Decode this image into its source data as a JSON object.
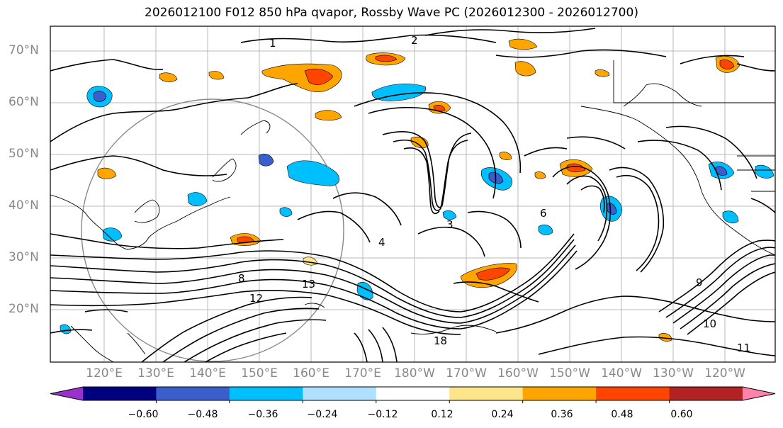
{
  "title": "2026012100 F012 850 hPa qvapor, Rossby Wave PC (2026012300 - 2026012700)",
  "latitude_labels": [
    "70°N",
    "60°N",
    "50°N",
    "40°N",
    "30°N",
    "20°N"
  ],
  "longitude_labels": [
    "120°E",
    "130°E",
    "140°E",
    "150°E",
    "160°E",
    "170°E",
    "180°W",
    "170°W",
    "160°W",
    "150°W",
    "140°W",
    "130°W",
    "120°W"
  ],
  "contour_labels": [
    "1",
    "2",
    "3",
    "4",
    "6",
    "8",
    "9",
    "10",
    "11",
    "12",
    "13",
    "18"
  ],
  "colorbar": {
    "tick_labels": [
      "−0.60",
      "−0.48",
      "−0.36",
      "−0.24",
      "−0.12",
      "0.12",
      "0.24",
      "0.36",
      "0.48",
      "0.60"
    ],
    "colors": [
      "#9932cc",
      "#000080",
      "#3a5fcd",
      "#00bfff",
      "#afe0ff",
      "#ffffff",
      "#ffe58a",
      "#ffa500",
      "#ff4500",
      "#b22222",
      "#ff82ab"
    ]
  },
  "anomaly_colors": {
    "neg_strong": "#3a5fcd",
    "neg": "#00bfff",
    "neg_weak": "#afe0ff",
    "pos_weak": "#ffe58a",
    "pos": "#ffa500",
    "pos_strong": "#ff4500"
  }
}
